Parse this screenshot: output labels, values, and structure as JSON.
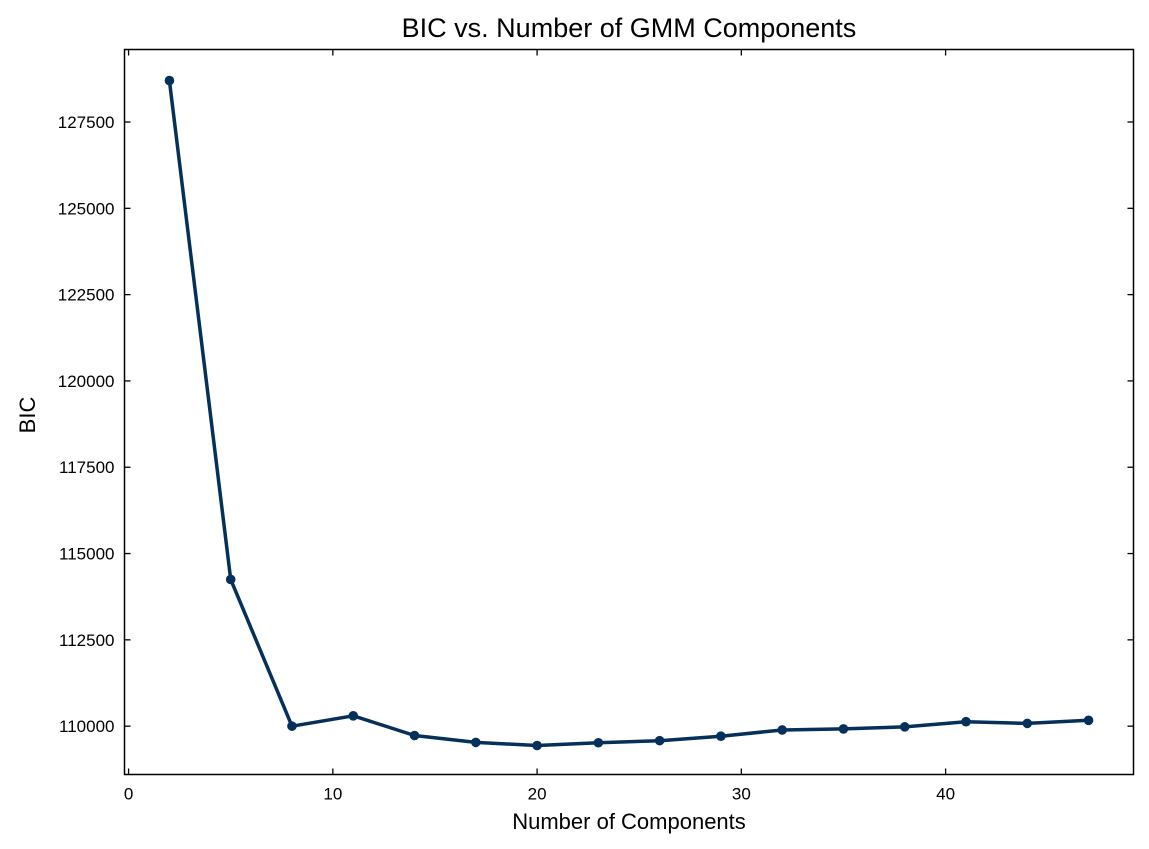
{
  "chart_data": {
    "type": "line",
    "title": "BIC vs. Number of GMM Components",
    "xlabel": "Number of Components",
    "ylabel": "BIC",
    "xlim": [
      -0.2,
      49.2
    ],
    "ylim": [
      108600,
      129600
    ],
    "xticks": [
      0,
      10,
      20,
      30,
      40
    ],
    "yticks": [
      110000,
      112500,
      115000,
      117500,
      120000,
      122500,
      125000,
      127500
    ],
    "grid": false,
    "line_color": "#05305a",
    "series": [
      {
        "x": [
          2,
          5,
          8,
          11,
          14,
          17,
          20,
          23,
          26,
          29,
          32,
          35,
          38,
          41,
          44,
          47
        ],
        "y": [
          128700,
          114250,
          110000,
          110300,
          109730,
          109530,
          109440,
          109520,
          109580,
          109710,
          109890,
          109920,
          109980,
          110130,
          110080,
          110170
        ]
      }
    ]
  }
}
